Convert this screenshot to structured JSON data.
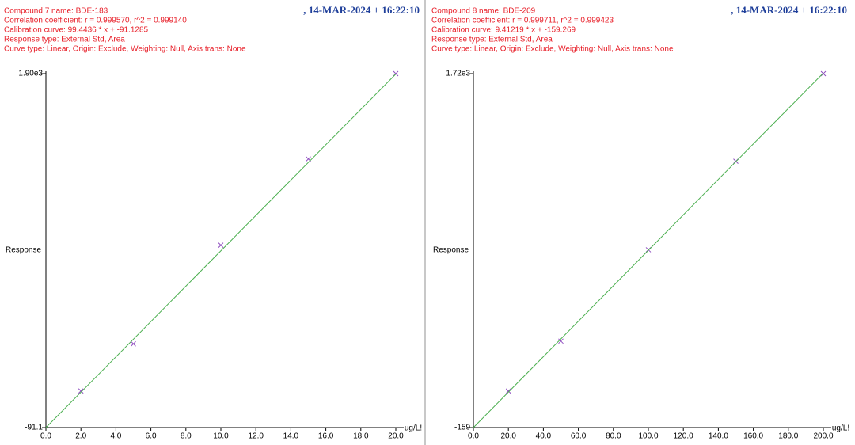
{
  "chart_data": [
    {
      "type": "scatter",
      "title": "Compound 7 name: BDE-183",
      "info": [
        "Correlation coefficient: r = 0.999570, r^2 = 0.999140",
        "Calibration curve: 99.4436 * x + -91.1285",
        "Response type: External Std, Area",
        "Curve type: Linear, Origin: Exclude, Weighting: Null, Axis trans: None"
      ],
      "timestamp": ", 14-MAR-2024 + 16:22:10",
      "y_label": "Response",
      "x_label": "ug/L!",
      "xlim": [
        0,
        20
      ],
      "xticks": [
        {
          "value": 0,
          "label": "0.0"
        },
        {
          "value": 2,
          "label": "2.0"
        },
        {
          "value": 4,
          "label": "4.0"
        },
        {
          "value": 6,
          "label": "6.0"
        },
        {
          "value": 8,
          "label": "8.0"
        },
        {
          "value": 10,
          "label": "10.0"
        },
        {
          "value": 12,
          "label": "12.0"
        },
        {
          "value": 14,
          "label": "14.0"
        },
        {
          "value": 16,
          "label": "16.0"
        },
        {
          "value": 18,
          "label": "18.0"
        },
        {
          "value": 20,
          "label": "20.0"
        }
      ],
      "ylim": [
        -91.1,
        1900
      ],
      "yticks": [
        {
          "value": -91.1,
          "label": "-91.1"
        },
        {
          "value": 1900,
          "label": "1.90e3"
        }
      ],
      "series": [
        {
          "type": "scatter",
          "color": "#9050c0",
          "x": [
            2,
            5,
            10,
            15,
            20
          ],
          "values": [
            115,
            380,
            935,
            1420,
            1900
          ]
        },
        {
          "type": "line",
          "color": "#4caf50",
          "x": [
            0,
            20
          ],
          "values": [
            -91.1,
            1897.7
          ]
        }
      ]
    },
    {
      "type": "scatter",
      "title": "Compound 8 name: BDE-209",
      "info": [
        "Correlation coefficient: r = 0.999711, r^2 = 0.999423",
        "Calibration curve: 9.41219 * x + -159.269",
        "Response type: External Std, Area",
        "Curve type: Linear, Origin: Exclude, Weighting: Null, Axis trans: None"
      ],
      "timestamp": ", 14-MAR-2024 + 16:22:10",
      "y_label": "Response",
      "x_label": "ug/L!",
      "xlim": [
        0,
        200
      ],
      "xticks": [
        {
          "value": 0,
          "label": "0.0"
        },
        {
          "value": 20,
          "label": "20.0"
        },
        {
          "value": 40,
          "label": "40.0"
        },
        {
          "value": 60,
          "label": "60.0"
        },
        {
          "value": 80,
          "label": "80.0"
        },
        {
          "value": 100,
          "label": "100.0"
        },
        {
          "value": 120,
          "label": "120.0"
        },
        {
          "value": 140,
          "label": "140.0"
        },
        {
          "value": 160,
          "label": "160.0"
        },
        {
          "value": 180,
          "label": "180.0"
        },
        {
          "value": 200,
          "label": "200.0"
        }
      ],
      "ylim": [
        -159,
        1720
      ],
      "yticks": [
        {
          "value": -159,
          "label": "-159"
        },
        {
          "value": 1720,
          "label": "1.72e3"
        }
      ],
      "series": [
        {
          "type": "scatter",
          "color": "#9050c0",
          "x": [
            20,
            50,
            100,
            150,
            200
          ],
          "values": [
            35,
            300,
            785,
            1255,
            1720
          ]
        },
        {
          "type": "line",
          "color": "#4caf50",
          "x": [
            0,
            200
          ],
          "values": [
            -159,
            1723.2
          ]
        }
      ]
    }
  ]
}
